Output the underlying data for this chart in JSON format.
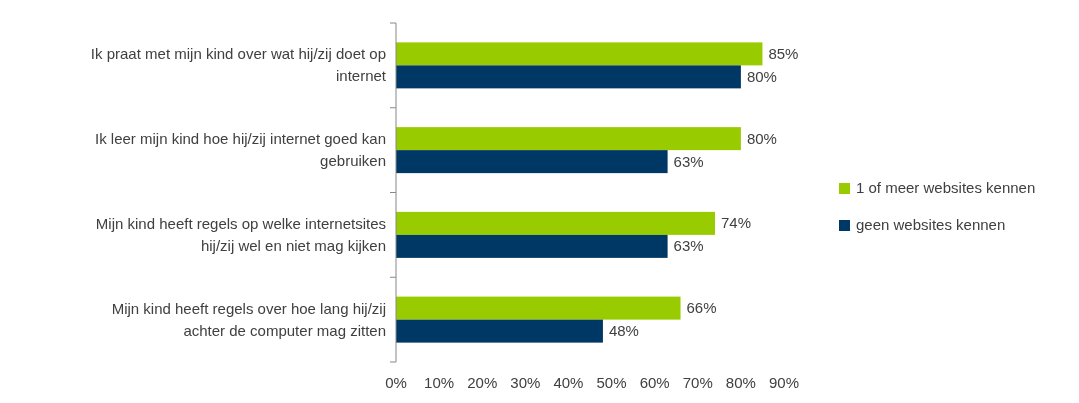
{
  "chart_data": {
    "type": "bar",
    "orientation": "horizontal",
    "categories": [
      "Ik praat met mijn kind over wat hij/zij doet op internet",
      "Ik leer mijn kind hoe hij/zij internet goed kan gebruiken",
      "Mijn kind heeft regels op welke internetsites hij/zij wel en niet mag kijken",
      "Mijn kind heeft regels over hoe lang hij/zij achter de computer mag zitten"
    ],
    "series": [
      {
        "name": "1 of meer websites kennen",
        "color": "#99cc00",
        "values": [
          85,
          80,
          74,
          66
        ],
        "value_labels": [
          "85%",
          "80%",
          "74%",
          "66%"
        ]
      },
      {
        "name": "geen websites kennen",
        "color": "#003865",
        "values": [
          80,
          63,
          63,
          48
        ],
        "value_labels": [
          "80%",
          "63%",
          "63%",
          "48%"
        ]
      }
    ],
    "xlim": [
      0,
      90
    ],
    "xticks": [
      {
        "value": 0,
        "label": "0%"
      },
      {
        "value": 10,
        "label": "10%"
      },
      {
        "value": 20,
        "label": "20%"
      },
      {
        "value": 30,
        "label": "30%"
      },
      {
        "value": 40,
        "label": "40%"
      },
      {
        "value": 50,
        "label": "50%"
      },
      {
        "value": 60,
        "label": "60%"
      },
      {
        "value": 70,
        "label": "70%"
      },
      {
        "value": 80,
        "label": "80%"
      },
      {
        "value": 90,
        "label": "90%"
      }
    ],
    "grid": false,
    "legend": "right"
  }
}
